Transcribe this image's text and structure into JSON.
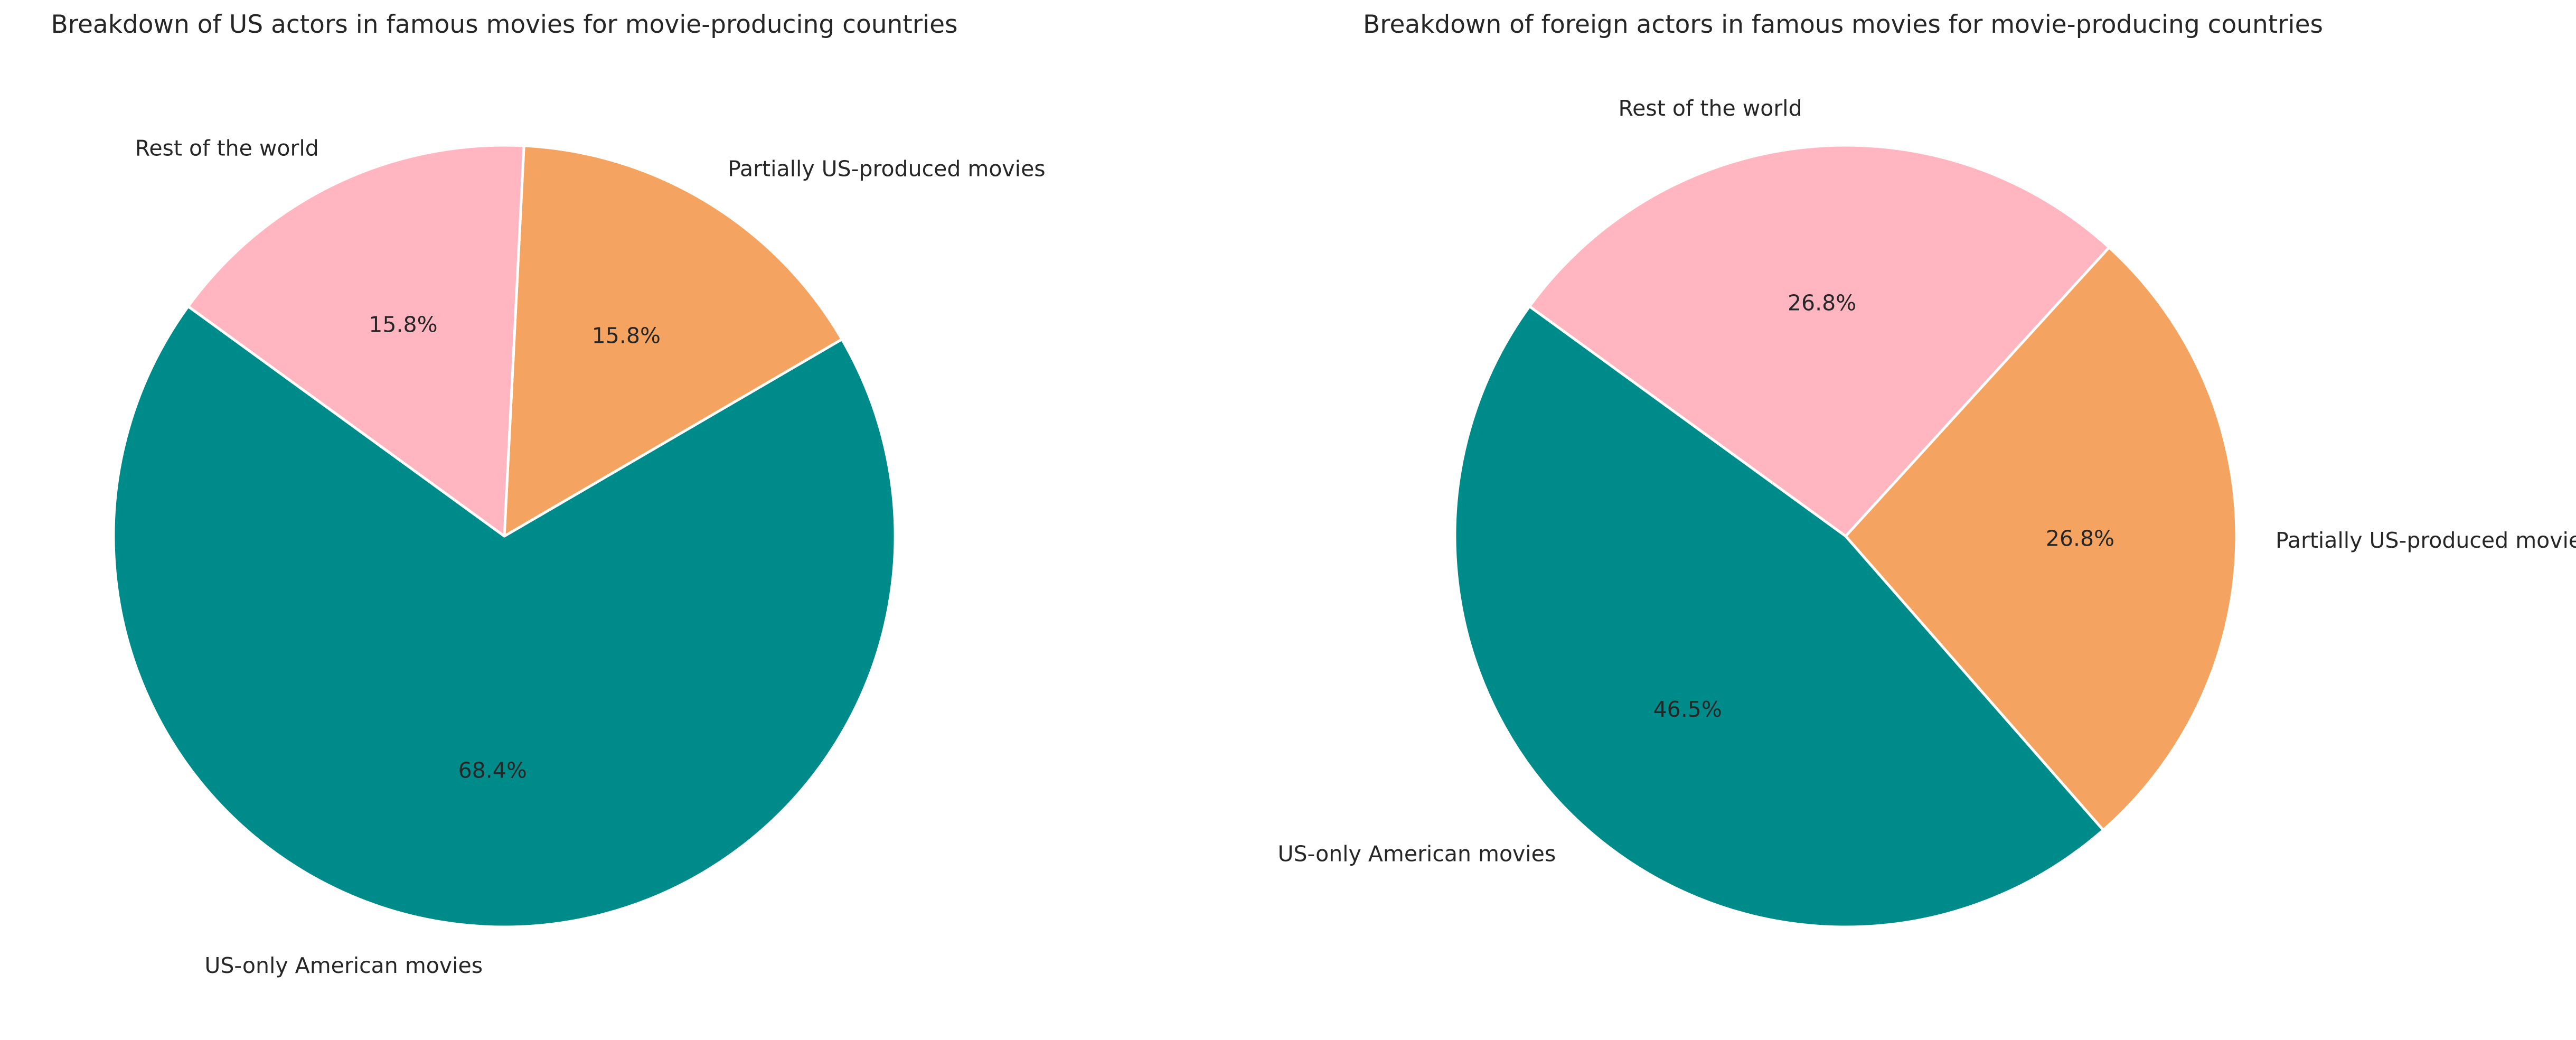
{
  "chart_data": [
    {
      "type": "pie",
      "title": "Breakdown of US actors in famous movies for movie-producing countries",
      "slices": [
        {
          "label": "US-only American movies",
          "value": 68.4,
          "pct_label": "68.4%",
          "color": "#008b8b"
        },
        {
          "label": "Partially US-produced movies",
          "value": 15.8,
          "pct_label": "15.8%",
          "color": "#f4a460"
        },
        {
          "label": "Rest of the world",
          "value": 15.8,
          "pct_label": "15.8%",
          "color": "#ffb6c1"
        }
      ]
    },
    {
      "type": "pie",
      "title": "Breakdown of foreign actors in famous movies for movie-producing countries",
      "slices": [
        {
          "label": "US-only American movies",
          "value": 46.5,
          "pct_label": "46.5%",
          "color": "#008b8b"
        },
        {
          "label": "Partially US-produced movies",
          "value": 26.8,
          "pct_label": "26.8%",
          "color": "#f4a460"
        },
        {
          "label": "Rest of the world",
          "value": 26.8,
          "pct_label": "26.8%",
          "color": "#ffb6c1"
        }
      ]
    }
  ]
}
